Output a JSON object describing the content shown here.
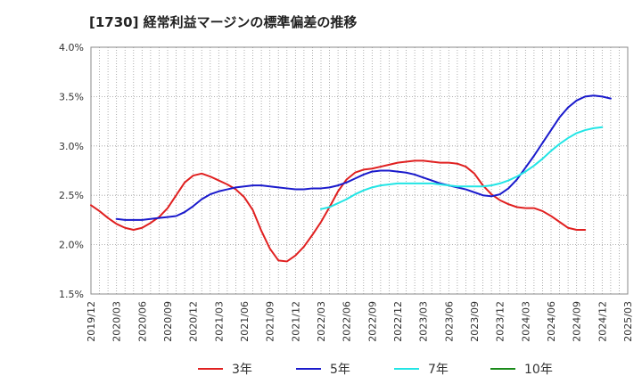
{
  "chart_data": {
    "type": "line",
    "title": "[1730]  経常利益マージンの標準偏差の推移",
    "xlabel": "",
    "ylabel": "",
    "ylim": [
      1.5,
      4.0
    ],
    "y_ticks": [
      "1.5%",
      "2.0%",
      "2.5%",
      "3.0%",
      "3.5%",
      "4.0%"
    ],
    "x_ticks": [
      "2019/12",
      "2020/03",
      "2020/06",
      "2020/09",
      "2020/12",
      "2021/03",
      "2021/06",
      "2021/09",
      "2021/12",
      "2022/03",
      "2022/06",
      "2022/09",
      "2022/12",
      "2023/03",
      "2023/06",
      "2023/09",
      "2023/12",
      "2024/03",
      "2024/06",
      "2024/09",
      "2024/12",
      "2025/03"
    ],
    "grid": true,
    "legend_position": "bottom",
    "series": [
      {
        "name": "3年",
        "color": "#e02020",
        "start": "2019/12",
        "values": [
          2.4,
          2.34,
          2.27,
          2.21,
          2.17,
          2.15,
          2.17,
          2.22,
          2.28,
          2.37,
          2.5,
          2.63,
          2.7,
          2.72,
          2.69,
          2.65,
          2.61,
          2.56,
          2.48,
          2.35,
          2.14,
          1.96,
          1.84,
          1.83,
          1.89,
          1.98,
          2.1,
          2.23,
          2.38,
          2.54,
          2.66,
          2.73,
          2.76,
          2.77,
          2.79,
          2.81,
          2.83,
          2.84,
          2.85,
          2.85,
          2.84,
          2.83,
          2.83,
          2.82,
          2.79,
          2.72,
          2.6,
          2.51,
          2.45,
          2.41,
          2.38,
          2.37,
          2.37,
          2.34,
          2.29,
          2.23,
          2.17,
          2.15,
          2.15
        ]
      },
      {
        "name": "5年",
        "color": "#1a1acc",
        "start": "2020/03",
        "values": [
          2.26,
          2.25,
          2.25,
          2.25,
          2.26,
          2.27,
          2.28,
          2.29,
          2.33,
          2.39,
          2.46,
          2.51,
          2.54,
          2.56,
          2.58,
          2.59,
          2.6,
          2.6,
          2.59,
          2.58,
          2.57,
          2.56,
          2.56,
          2.57,
          2.57,
          2.58,
          2.6,
          2.63,
          2.67,
          2.71,
          2.74,
          2.75,
          2.75,
          2.74,
          2.73,
          2.71,
          2.68,
          2.65,
          2.62,
          2.6,
          2.58,
          2.56,
          2.53,
          2.5,
          2.49,
          2.51,
          2.57,
          2.66,
          2.78,
          2.9,
          3.03,
          3.16,
          3.29,
          3.39,
          3.46,
          3.5,
          3.51,
          3.5,
          3.48
        ]
      },
      {
        "name": "7年",
        "color": "#22e5e5",
        "start": "2022/03",
        "values": [
          2.36,
          2.38,
          2.42,
          2.46,
          2.51,
          2.55,
          2.58,
          2.6,
          2.61,
          2.62,
          2.62,
          2.62,
          2.62,
          2.62,
          2.61,
          2.6,
          2.59,
          2.59,
          2.59,
          2.59,
          2.6,
          2.62,
          2.65,
          2.69,
          2.74,
          2.8,
          2.87,
          2.95,
          3.02,
          3.08,
          3.13,
          3.16,
          3.18,
          3.19
        ]
      },
      {
        "name": "10年",
        "color": "#1a8a1a",
        "start": "2025/03",
        "values": []
      }
    ]
  }
}
